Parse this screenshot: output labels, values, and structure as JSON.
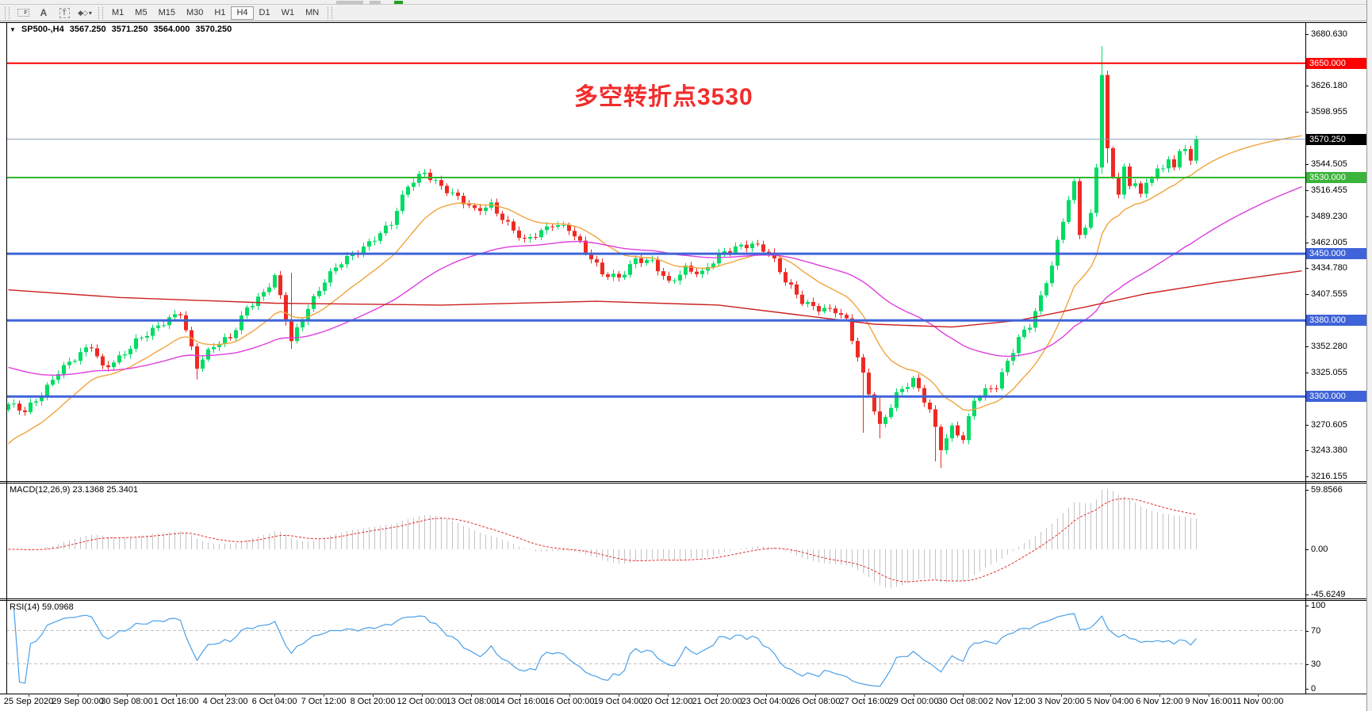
{
  "toolbar": {
    "tools": [
      {
        "name": "fibo-grid-tool",
        "glyph": "F"
      },
      {
        "name": "text-tool",
        "glyph": "A"
      },
      {
        "name": "label-tool",
        "glyph": "T"
      },
      {
        "name": "arrows-tool",
        "glyph": "◆◇",
        "dropdown": "▾"
      }
    ],
    "timeframes": [
      {
        "label": "M1"
      },
      {
        "label": "M5"
      },
      {
        "label": "M15"
      },
      {
        "label": "M30"
      },
      {
        "label": "H1"
      },
      {
        "label": "H4",
        "active": true
      },
      {
        "label": "D1"
      },
      {
        "label": "W1"
      },
      {
        "label": "MN"
      }
    ]
  },
  "quote_bar": {
    "dropdown_icon": "▼",
    "symbol": "SP500-,H4",
    "open": "3567.250",
    "high": "3571.250",
    "low": "3564.000",
    "close": "3570.250"
  },
  "annotation": {
    "text": "多空转折点3530",
    "color": "#f22c2c"
  },
  "price_axis": {
    "ticks": [
      "3680.630",
      "3626.180",
      "3598.955",
      "3544.505",
      "3516.455",
      "3489.230",
      "3462.005",
      "3434.780",
      "3407.555",
      "3352.280",
      "3325.055",
      "3270.605",
      "3243.380",
      "3216.155"
    ]
  },
  "levels": [
    {
      "label": "3650.000",
      "value": 3650.0,
      "line_color": "#ff0000",
      "badge_color": "#ff0000",
      "thickness": 2,
      "role": "resistance-line"
    },
    {
      "label": "3570.250",
      "value": 3570.25,
      "line_color": "#8ca0b4",
      "badge_color": "#000000",
      "thickness": 1,
      "role": "current-price-line"
    },
    {
      "label": "3530.000",
      "value": 3530.0,
      "line_color": "#2eb82e",
      "badge_color": "#3cb43c",
      "thickness": 2,
      "role": "pivot-line"
    },
    {
      "label": "3450.000",
      "value": 3450.0,
      "line_color": "#3f63d8",
      "badge_color": "#3f63d8",
      "thickness": 3,
      "role": "support-line"
    },
    {
      "label": "3380.000",
      "value": 3380.0,
      "line_color": "#3f63d8",
      "badge_color": "#3f63d8",
      "thickness": 3,
      "role": "support-line"
    },
    {
      "label": "3300.000",
      "value": 3300.0,
      "line_color": "#3f63d8",
      "badge_color": "#3f63d8",
      "thickness": 3,
      "role": "support-line"
    }
  ],
  "macd_panel": {
    "title": "MACD(12,26,9) 23.1368 25.3401",
    "ticks": [
      {
        "label": "59.8566",
        "value": 59.8566
      },
      {
        "label": "0.00",
        "value": 0
      },
      {
        "label": "-45.6249",
        "value": -45.6249
      }
    ]
  },
  "rsi_panel": {
    "title": "RSI(14) 59.0968",
    "ticks": [
      {
        "label": "100",
        "value": 100
      },
      {
        "label": "70",
        "value": 70
      },
      {
        "label": "30",
        "value": 30
      },
      {
        "label": "0",
        "value": 0
      }
    ],
    "levels": [
      70,
      30
    ]
  },
  "time_axis": {
    "labels": [
      "25 Sep 2020",
      "29 Sep 00:00",
      "30 Sep 08:00",
      "1 Oct 16:00",
      "4 Oct 23:00",
      "6 Oct 04:00",
      "7 Oct 12:00",
      "8 Oct 20:00",
      "12 Oct 00:00",
      "13 Oct 08:00",
      "14 Oct 16:00",
      "16 Oct 00:00",
      "19 Oct 04:00",
      "20 Oct 12:00",
      "21 Oct 20:00",
      "23 Oct 04:00",
      "26 Oct 08:00",
      "27 Oct 16:00",
      "29 Oct 00:00",
      "30 Oct 08:00",
      "2 Nov 12:00",
      "3 Nov 20:00",
      "5 Nov 04:00",
      "6 Nov 12:00",
      "9 Nov 16:00",
      "11 Nov 00:00"
    ]
  },
  "chart_data": {
    "type": "candlestick",
    "symbol": "SP500-",
    "timeframe": "H4",
    "visible_price_range": [
      3216.155,
      3680.63
    ],
    "current_price": 3570.25,
    "candle_count": 215,
    "up_color": "#00dc64",
    "down_color": "#ee2a22",
    "close_anchors": [
      [
        0,
        3292
      ],
      [
        3,
        3283
      ],
      [
        6,
        3302
      ],
      [
        9,
        3328
      ],
      [
        12,
        3340
      ],
      [
        15,
        3352
      ],
      [
        17,
        3330
      ],
      [
        20,
        3342
      ],
      [
        23,
        3358
      ],
      [
        26,
        3368
      ],
      [
        29,
        3382
      ],
      [
        31,
        3390
      ],
      [
        34,
        3332
      ],
      [
        37,
        3352
      ],
      [
        40,
        3362
      ],
      [
        43,
        3395
      ],
      [
        46,
        3408
      ],
      [
        48,
        3425
      ],
      [
        51,
        3358
      ],
      [
        54,
        3395
      ],
      [
        57,
        3422
      ],
      [
        60,
        3440
      ],
      [
        63,
        3452
      ],
      [
        66,
        3468
      ],
      [
        69,
        3482
      ],
      [
        72,
        3520
      ],
      [
        75,
        3536
      ],
      [
        78,
        3522
      ],
      [
        81,
        3508
      ],
      [
        84,
        3494
      ],
      [
        87,
        3502
      ],
      [
        90,
        3482
      ],
      [
        93,
        3462
      ],
      [
        96,
        3472
      ],
      [
        98,
        3482
      ],
      [
        101,
        3478
      ],
      [
        104,
        3452
      ],
      [
        107,
        3428
      ],
      [
        110,
        3426
      ],
      [
        113,
        3445
      ],
      [
        116,
        3440
      ],
      [
        119,
        3418
      ],
      [
        122,
        3436
      ],
      [
        125,
        3430
      ],
      [
        128,
        3447
      ],
      [
        131,
        3456
      ],
      [
        134,
        3462
      ],
      [
        137,
        3452
      ],
      [
        140,
        3420
      ],
      [
        143,
        3400
      ],
      [
        146,
        3394
      ],
      [
        149,
        3390
      ],
      [
        151,
        3378
      ],
      [
        154,
        3322
      ],
      [
        157,
        3270
      ],
      [
        160,
        3302
      ],
      [
        163,
        3316
      ],
      [
        166,
        3286
      ],
      [
        168,
        3248
      ],
      [
        170,
        3268
      ],
      [
        172,
        3255
      ],
      [
        174,
        3295
      ],
      [
        176,
        3305
      ],
      [
        178,
        3312
      ],
      [
        180,
        3338
      ],
      [
        182,
        3362
      ],
      [
        184,
        3374
      ],
      [
        186,
        3402
      ],
      [
        188,
        3438
      ],
      [
        190,
        3486
      ],
      [
        191,
        3510
      ],
      [
        192,
        3525
      ],
      [
        193,
        3470
      ],
      [
        194,
        3478
      ],
      [
        195,
        3492
      ],
      [
        196,
        3540
      ],
      [
        197,
        3638
      ],
      [
        198,
        3560
      ],
      [
        199,
        3530
      ],
      [
        200,
        3515
      ],
      [
        201,
        3542
      ],
      [
        202,
        3520
      ],
      [
        203,
        3528
      ],
      [
        204,
        3515
      ],
      [
        205,
        3522
      ],
      [
        206,
        3530
      ],
      [
        207,
        3540
      ],
      [
        208,
        3535
      ],
      [
        209,
        3548
      ],
      [
        210,
        3542
      ],
      [
        211,
        3555
      ],
      [
        212,
        3560
      ],
      [
        213,
        3552
      ],
      [
        214,
        3570
      ]
    ],
    "wick_overrides": [
      [
        197,
        3668,
        3534
      ],
      [
        198,
        3640,
        3545
      ],
      [
        168,
        3258,
        3225
      ],
      [
        167,
        3280,
        3232
      ],
      [
        157,
        3300,
        3256
      ],
      [
        154,
        3330,
        3262
      ],
      [
        51,
        3430,
        3350
      ],
      [
        34,
        3345,
        3318
      ]
    ],
    "moving_averages": [
      {
        "name": "ma-fast",
        "type": "ema",
        "period": 16,
        "color": "#f0a43c",
        "seed": 3245
      },
      {
        "name": "ma-medium",
        "type": "ema",
        "period": 55,
        "color": "#de3ede",
        "seed": 3332
      },
      {
        "name": "ma-slow",
        "type": "anchored",
        "color": "#cc2020",
        "points": [
          [
            0,
            3412
          ],
          [
            20,
            3404
          ],
          [
            48,
            3398
          ],
          [
            78,
            3396
          ],
          [
            106,
            3400
          ],
          [
            128,
            3396
          ],
          [
            142,
            3386
          ],
          [
            156,
            3376
          ],
          [
            170,
            3373
          ],
          [
            182,
            3380
          ],
          [
            194,
            3394
          ],
          [
            205,
            3408
          ],
          [
            218,
            3420
          ],
          [
            233,
            3432
          ]
        ]
      }
    ],
    "macd": {
      "fast": 12,
      "slow": 26,
      "signal_period": 9,
      "histogram_color": "#c4c4c4",
      "signal_color": "#e03030",
      "current_macd": 23.1368,
      "current_signal": 25.3401,
      "axis_range": [
        -45.6249,
        59.8566
      ]
    },
    "rsi": {
      "period": 14,
      "color": "#4aa0e8",
      "current": 59.0968,
      "levels": [
        70,
        30
      ]
    }
  }
}
